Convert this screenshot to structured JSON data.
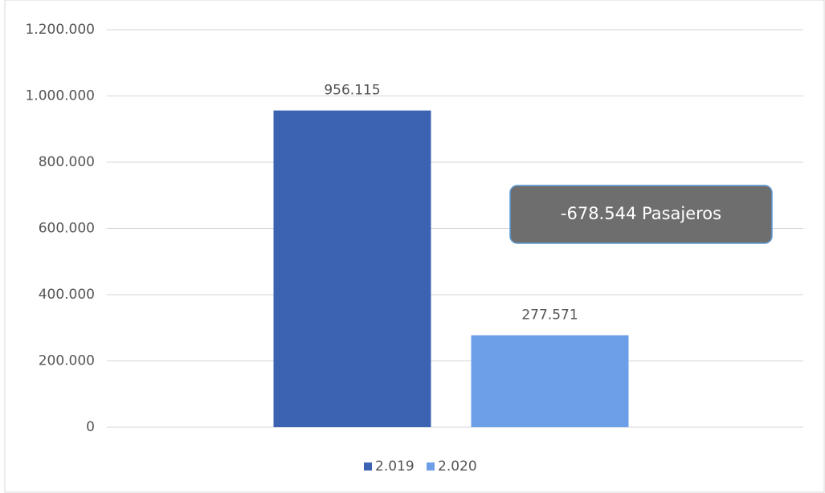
{
  "chart_data": {
    "type": "bar",
    "categories": [
      null
    ],
    "series": [
      {
        "name": "2.019",
        "color": "#3b63b2",
        "values": [
          956115
        ],
        "value_labels": [
          "956.115"
        ]
      },
      {
        "name": "2.020",
        "color": "#6d9fe8",
        "values": [
          277571
        ],
        "value_labels": [
          "277.571"
        ]
      }
    ],
    "ylim": [
      0,
      1200000
    ],
    "yticks": [
      0,
      {
        "value": 200000,
        "label": "200.000"
      },
      {
        "value": 400000,
        "label": "400.000"
      },
      {
        "value": 600000,
        "label": "600.000"
      },
      {
        "value": 800000,
        "label": "800.000"
      },
      {
        "value": 1000000,
        "label": "1.000.000"
      },
      {
        "value": 1200000,
        "label": "1.200.000"
      }
    ],
    "grid": true,
    "legend": "bottom",
    "annotations": [
      "-678.544 Pasajeros"
    ]
  }
}
